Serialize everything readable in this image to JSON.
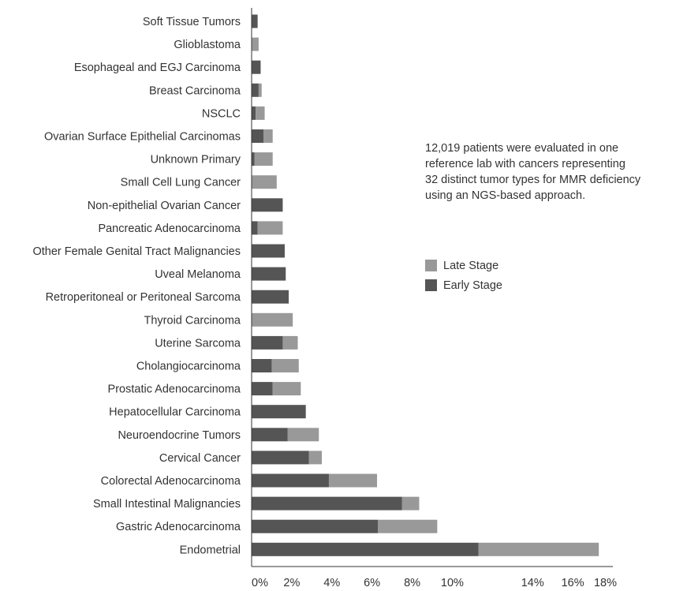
{
  "chart_data": {
    "type": "bar",
    "orientation": "horizontal",
    "stacked": true,
    "categories": [
      "Soft Tissue Tumors",
      "Glioblastoma",
      "Esophageal and EGJ Carcinoma",
      "Breast Carcinoma",
      "NSCLC",
      "Ovarian Surface Epithelial Carcinomas",
      "Unknown Primary",
      "Small Cell Lung Cancer",
      "Non-epithelial Ovarian Cancer",
      "Pancreatic Adenocarcinoma",
      "Other Female Genital Tract Malignancies",
      "Uveal Melanoma",
      "Retroperitoneal or Peritoneal Sarcoma",
      "Thyroid Carcinoma",
      "Uterine Sarcoma",
      "Cholangiocarcinoma",
      "Prostatic Adenocarcinoma",
      "Hepatocellular Carcinoma",
      "Neuroendocrine Tumors",
      "Cervical Cancer",
      "Colorectal Adenocarcinoma",
      "Small Intestinal Malignancies",
      "Gastric Adenocarcinoma",
      "Endometrial"
    ],
    "series": [
      {
        "name": "Early Stage",
        "color": "#555555",
        "values": [
          0.3,
          0.0,
          0.45,
          0.35,
          0.2,
          0.6,
          0.15,
          0.0,
          1.55,
          0.3,
          1.65,
          1.7,
          1.85,
          0.0,
          1.55,
          1.0,
          1.05,
          2.7,
          1.8,
          2.85,
          3.85,
          7.5,
          6.3,
          11.3
        ]
      },
      {
        "name": "Late Stage",
        "color": "#999999",
        "values": [
          0.0,
          0.35,
          0.0,
          0.15,
          0.45,
          0.45,
          0.9,
          1.25,
          0.0,
          1.25,
          0.0,
          0.0,
          0.0,
          2.05,
          0.75,
          1.35,
          1.4,
          0.0,
          1.55,
          0.65,
          2.4,
          0.85,
          2.95,
          6.0
        ]
      }
    ],
    "xlim": [
      0,
      18
    ],
    "x_ticks": [
      "0%",
      "2%",
      "4%",
      "6%",
      "8%",
      "10%",
      "14%",
      "16%",
      "18%"
    ],
    "x_tick_values": [
      0,
      2,
      4,
      6,
      8,
      10,
      14,
      16,
      18
    ],
    "xlabel": "",
    "ylabel": "",
    "grid": false,
    "legend_position": "right",
    "legend_order": [
      "Late Stage",
      "Early Stage"
    ],
    "annotation": "12,019 patients were evaluated in one reference lab with cancers representing 32 distinct tumor types for MMR deficiency using an NGS-based approach.",
    "annotation_lines": [
      "12,019 patients were evaluated in one",
      "reference lab with cancers representing",
      "32 distinct tumor types for MMR deficiency",
      "using an NGS-based approach."
    ]
  },
  "legend": {
    "items": [
      {
        "label": "Late Stage",
        "color": "#999999"
      },
      {
        "label": "Early Stage",
        "color": "#555555"
      }
    ]
  }
}
